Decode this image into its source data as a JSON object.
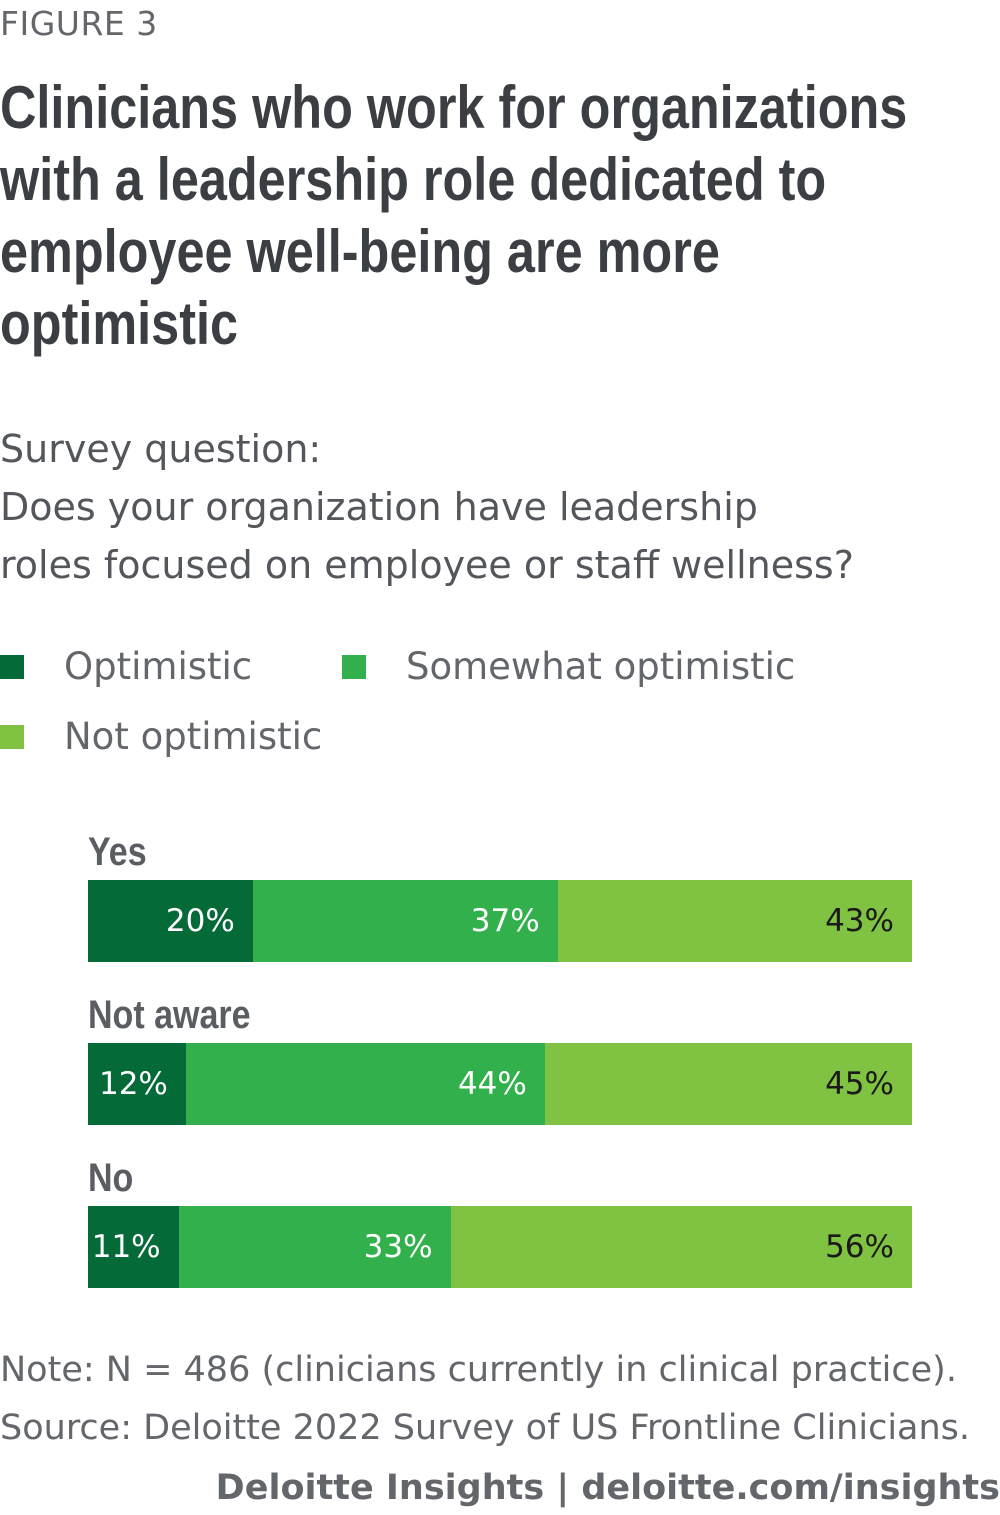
{
  "figure_label": "FIGURE 3",
  "title": "Clinicians who work for organizations with a leadership role dedicated to employee well-being are more optimistic",
  "question": {
    "line1": "Survey question:",
    "line2": "Does your organization have leadership",
    "line3": "roles focused on employee or staff wellness?"
  },
  "colors": {
    "optimistic": "#046a38",
    "somewhat_optimistic": "#31b04b",
    "not_optimistic": "#80c242"
  },
  "chart_data": {
    "type": "bar",
    "orientation": "horizontal",
    "stacked": true,
    "normalized": true,
    "title": "Clinicians who work for organizations with a leadership role dedicated to employee well-being are more optimistic",
    "xlabel": "",
    "ylabel": "",
    "legend_position": "top",
    "categories": [
      "Yes",
      "Not aware",
      "No"
    ],
    "series": [
      {
        "name": "Optimistic",
        "color": "#046a38",
        "values": [
          20,
          12,
          11
        ],
        "labels": [
          "20%",
          "12%",
          "11%"
        ]
      },
      {
        "name": "Somewhat optimistic",
        "color": "#31b04b",
        "values": [
          37,
          44,
          33
        ],
        "labels": [
          "37%",
          "44%",
          "33%"
        ]
      },
      {
        "name": "Not optimistic",
        "color": "#80c242",
        "values": [
          43,
          45,
          56
        ],
        "labels": [
          "43%",
          "45%",
          "56%"
        ]
      }
    ],
    "xlim": [
      0,
      100
    ],
    "grid": false
  },
  "note": "Note: N = 486 (clinicians currently in clinical practice).",
  "source": "Source: Deloitte 2022 Survey of US Frontline Clinicians.",
  "credit": "Deloitte Insights | deloitte.com/insights"
}
